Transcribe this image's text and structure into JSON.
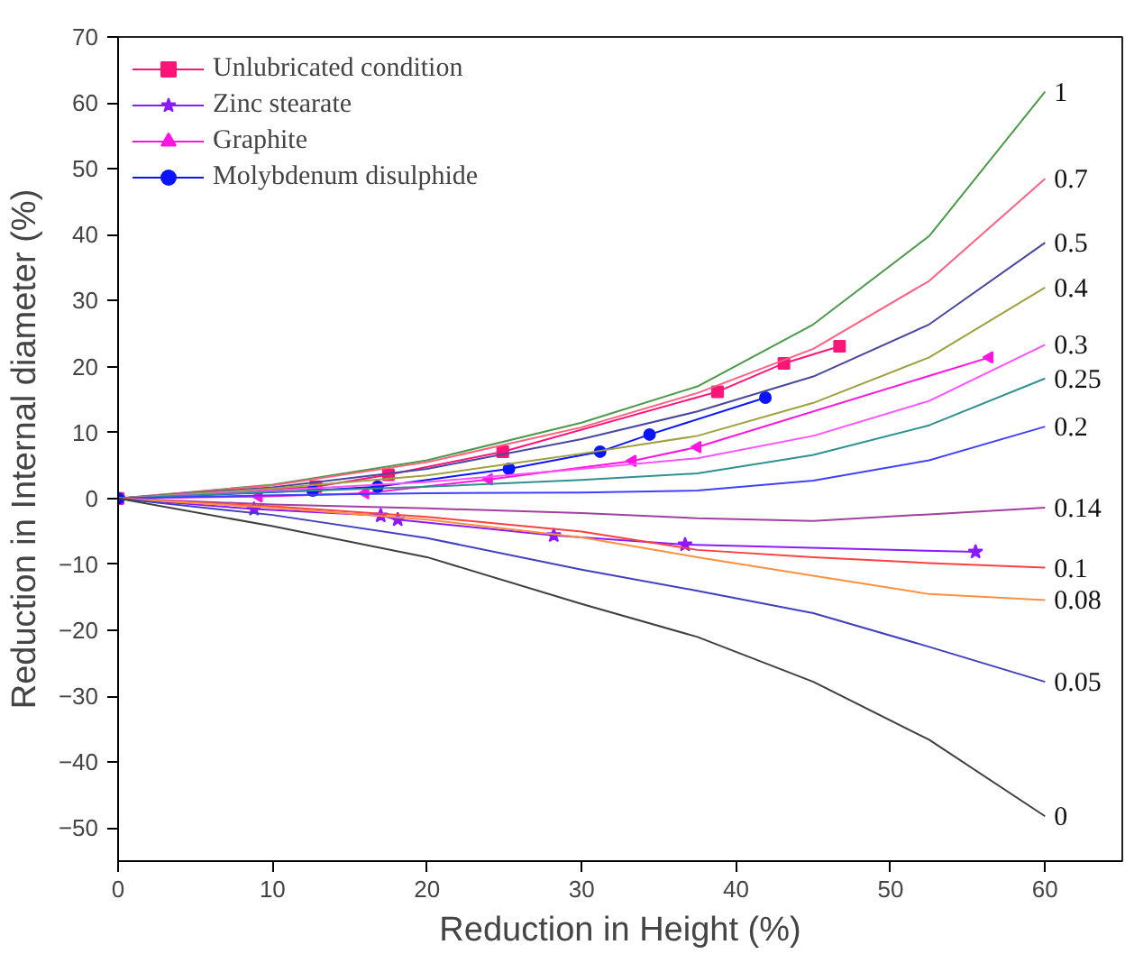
{
  "chart_data": {
    "type": "line",
    "xlabel": "Reduction in Height (%)",
    "ylabel": "Reduction in Internal diameter (%)",
    "xlim": [
      0,
      65
    ],
    "ylim": [
      -55,
      70
    ],
    "xticks": [
      0,
      10,
      20,
      30,
      40,
      50,
      60
    ],
    "yticks": [
      -50,
      -40,
      -30,
      -20,
      -10,
      0,
      10,
      20,
      30,
      40,
      50,
      60,
      70
    ],
    "grid": false,
    "legend": "top left",
    "series": [
      {
        "name": "Unlubricated condition",
        "color": "#ff1477",
        "marker": "square",
        "x": [
          0,
          12.8,
          17.5,
          24.9,
          38.8,
          43.1,
          46.7
        ],
        "values": [
          0,
          1.8,
          3.6,
          7.1,
          16.2,
          20.5,
          23.1
        ]
      },
      {
        "name": "Zinc stearate",
        "color": "#8a1aff",
        "marker": "star",
        "x": [
          0,
          8.8,
          17.0,
          18.1,
          28.2,
          36.7,
          55.5
        ],
        "values": [
          0,
          -1.6,
          -2.6,
          -3.2,
          -5.6,
          -7,
          -8.1
        ]
      },
      {
        "name": "Graphite",
        "color": "#ff14e0",
        "marker": "triangle",
        "x": [
          0,
          9.1,
          16.0,
          24.0,
          33.3,
          37.5,
          56.4
        ],
        "values": [
          0,
          0.3,
          0.8,
          2.9,
          5.7,
          7.8,
          21.4
        ]
      },
      {
        "name": "Molybdenum disulphide",
        "color": "#0a14ff",
        "marker": "circle",
        "x": [
          0,
          12.6,
          16.8,
          25.3,
          31.2,
          34.4,
          41.9
        ],
        "values": [
          0,
          1.2,
          1.8,
          4.5,
          7.1,
          9.7,
          15.3
        ]
      },
      {
        "name": "1",
        "color": "#4a9a4a",
        "marker": "none",
        "x": [
          0,
          10,
          20,
          30,
          37.5,
          45,
          52.5,
          60
        ],
        "values": [
          0,
          2.1,
          5.8,
          11.5,
          17,
          26.4,
          39.8,
          61.7
        ]
      },
      {
        "name": "0.7",
        "color": "#ff6080",
        "marker": "none",
        "x": [
          0,
          10,
          20,
          30,
          37.5,
          45,
          52.5,
          60
        ],
        "values": [
          0,
          2,
          5.5,
          10.8,
          16,
          22.7,
          33,
          48.5
        ]
      },
      {
        "name": "0.5",
        "color": "#4848a0",
        "marker": "none",
        "x": [
          0,
          10,
          20,
          30,
          37.5,
          45,
          52.5,
          60
        ],
        "values": [
          0,
          1.7,
          4.5,
          9,
          13.2,
          18.5,
          26.4,
          38.8
        ]
      },
      {
        "name": "0.4",
        "color": "#a0a040",
        "marker": "none",
        "x": [
          0,
          10,
          20,
          30,
          37.5,
          45,
          52.5,
          60
        ],
        "values": [
          0,
          1.5,
          3.5,
          6.8,
          9.5,
          14.5,
          21.4,
          32
        ]
      },
      {
        "name": "0.3",
        "color": "#ff50ff",
        "marker": "none",
        "x": [
          0,
          10,
          20,
          30,
          37.5,
          45,
          52.5,
          60
        ],
        "values": [
          0,
          1.2,
          2.5,
          4.5,
          6.1,
          9.5,
          14.8,
          23.3
        ]
      },
      {
        "name": "0.25",
        "color": "#309090",
        "marker": "none",
        "x": [
          0,
          10,
          20,
          30,
          37.5,
          45,
          52.5,
          60
        ],
        "values": [
          0,
          1,
          1.8,
          2.8,
          3.8,
          6.6,
          11.1,
          18.2
        ]
      },
      {
        "name": "0.2",
        "color": "#4040ff",
        "marker": "none",
        "x": [
          0,
          10,
          20,
          30,
          37.5,
          45,
          52.5,
          60
        ],
        "values": [
          0,
          0.5,
          0.8,
          0.9,
          1.2,
          2.7,
          5.8,
          10.9
        ]
      },
      {
        "name": "0.14",
        "color": "#a040a0",
        "marker": "none",
        "x": [
          0,
          10,
          20,
          30,
          37.5,
          45,
          52.5,
          60
        ],
        "values": [
          0,
          -0.9,
          -1.5,
          -2.2,
          -3,
          -3.4,
          -2.4,
          -1.4
        ]
      },
      {
        "name": "0.1",
        "color": "#ff4040",
        "marker": "none",
        "x": [
          0,
          10,
          20,
          30,
          37.5,
          45,
          52.5,
          60
        ],
        "values": [
          0,
          -1.2,
          -2.8,
          -5,
          -7.8,
          -8.9,
          -9.8,
          -10.5
        ]
      },
      {
        "name": "0.08",
        "color": "#ff9040",
        "marker": "none",
        "x": [
          0,
          10,
          20,
          30,
          37.5,
          45,
          52.5,
          60
        ],
        "values": [
          0,
          -1.4,
          -3.2,
          -5.9,
          -8.9,
          -11.7,
          -14.5,
          -15.4
        ]
      },
      {
        "name": "0.05",
        "color": "#4040c0",
        "marker": "none",
        "x": [
          0,
          10,
          20,
          30,
          37.5,
          45,
          52.5,
          60
        ],
        "values": [
          0,
          -2.5,
          -6,
          -10.8,
          -14,
          -17.4,
          -22.5,
          -27.8
        ]
      },
      {
        "name": "0",
        "color": "#404040",
        "marker": "none",
        "x": [
          0,
          10,
          20,
          30,
          37.5,
          45,
          52.5,
          60
        ],
        "values": [
          0,
          -4.2,
          -8.9,
          -16,
          -21,
          -27.8,
          -36.6,
          -48.2
        ]
      }
    ]
  }
}
